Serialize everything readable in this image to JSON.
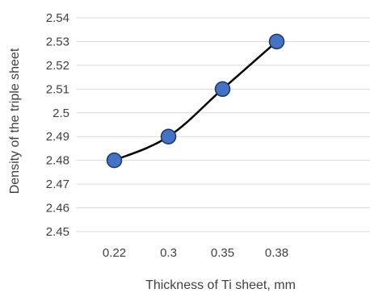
{
  "chart_data": {
    "type": "line",
    "title": "",
    "xlabel": "Thickness of Ti sheet, mm",
    "ylabel": "Density of the triple sheet",
    "categories": [
      "0.22",
      "0.3",
      "0.35",
      "0.38"
    ],
    "series": [
      {
        "values": [
          2.48,
          2.49,
          2.51,
          2.53
        ]
      }
    ],
    "ylim": [
      2.45,
      2.54
    ],
    "yticks": [
      "2.45",
      "2.46",
      "2.47",
      "2.48",
      "2.49",
      "2.5",
      "2.51",
      "2.52",
      "2.53",
      "2.54"
    ],
    "grid": true,
    "smooth": true,
    "legend": "none",
    "colors": {
      "line": "#000000",
      "marker_fill": "#4472C4",
      "marker_stroke": "#1F3864",
      "grid": "#D9D9D9",
      "text": "#404040"
    }
  }
}
